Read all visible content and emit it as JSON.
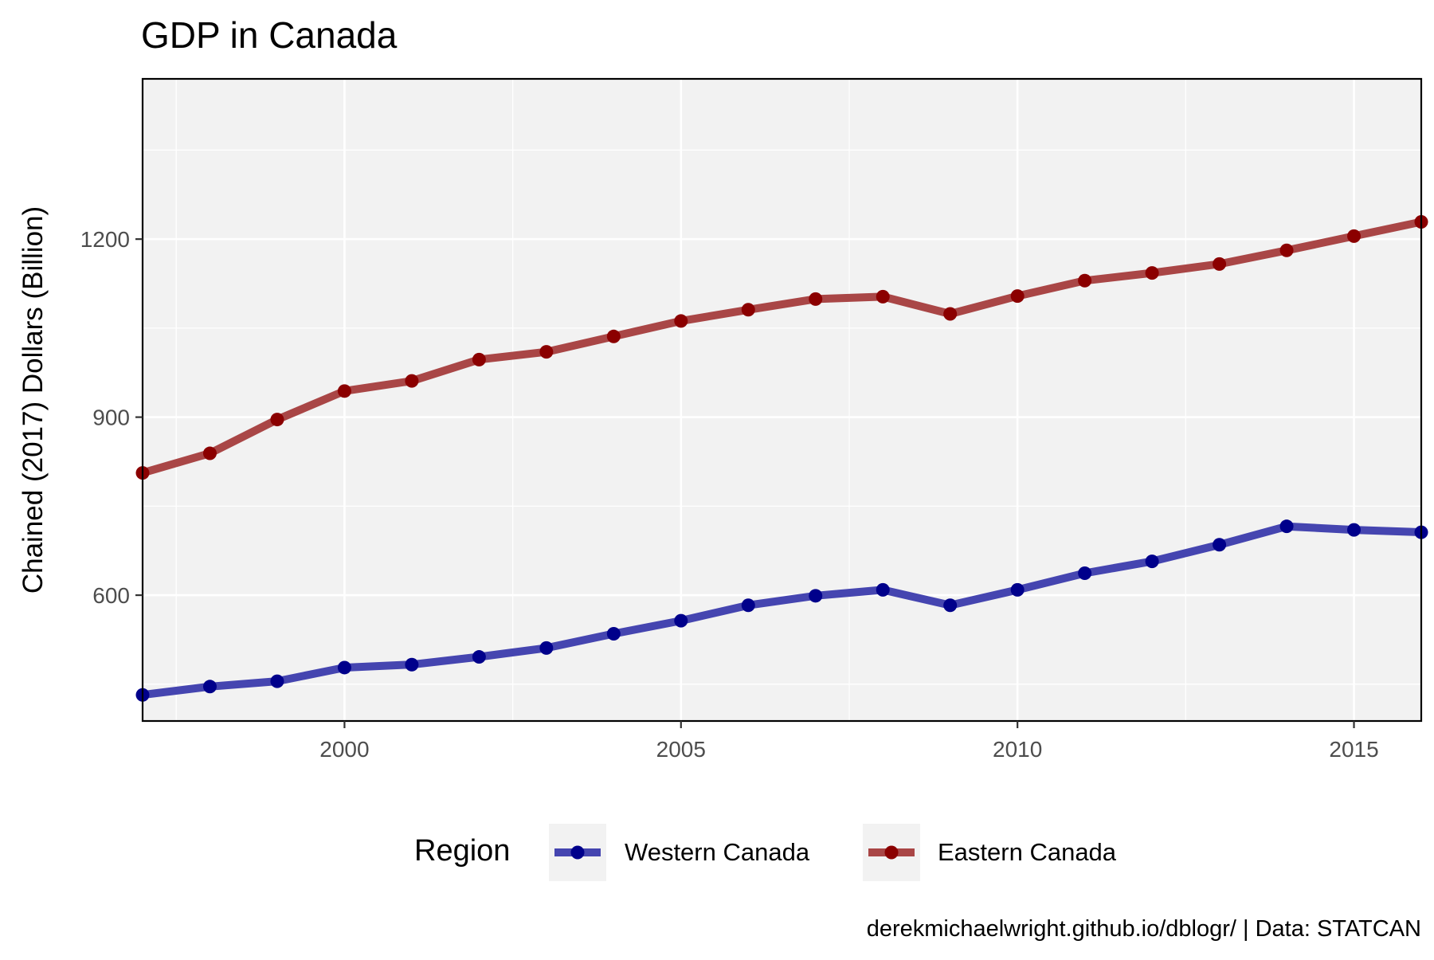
{
  "chart_data": {
    "type": "line",
    "title": "GDP in Canada",
    "xlabel": "",
    "ylabel": "Chained (2017) Dollars (Billion)",
    "caption": "derekmichaelwright.github.io/dblogr/ | Data: STATCAN",
    "x": [
      1997,
      1998,
      1999,
      2000,
      2001,
      2002,
      2003,
      2004,
      2005,
      2006,
      2007,
      2008,
      2009,
      2010,
      2011,
      2012,
      2013,
      2014,
      2015,
      2016
    ],
    "xlim": [
      1997,
      2016
    ],
    "ylim": [
      388,
      1470
    ],
    "x_ticks": [
      2000,
      2005,
      2010,
      2015
    ],
    "x_minor_ticks": [
      1997.5,
      2002.5,
      2007.5,
      2012.5
    ],
    "y_ticks": [
      600,
      900,
      1200
    ],
    "y_minor_ticks": [
      450,
      750,
      1050,
      1350
    ],
    "grid": true,
    "legend": {
      "title": "Region",
      "position": "bottom",
      "entries": [
        "Western Canada",
        "Eastern Canada"
      ]
    },
    "series": [
      {
        "name": "Western Canada",
        "line_color": "#4545b0",
        "point_color": "#00008b",
        "values": [
          432,
          446,
          455,
          478,
          483,
          496,
          511,
          535,
          557,
          583,
          599,
          609,
          583,
          609,
          637,
          657,
          685,
          716,
          710,
          706
        ]
      },
      {
        "name": "Eastern Canada",
        "line_color": "#a94646",
        "point_color": "#8b0000",
        "values": [
          806,
          839,
          896,
          944,
          961,
          997,
          1010,
          1036,
          1062,
          1081,
          1099,
          1103,
          1074,
          1104,
          1130,
          1143,
          1158,
          1181,
          1205,
          1229
        ]
      }
    ],
    "colors": {
      "panel_background": "#f2f2f2",
      "grid": "#ffffff",
      "axis_text": "#4d4d4d"
    }
  }
}
